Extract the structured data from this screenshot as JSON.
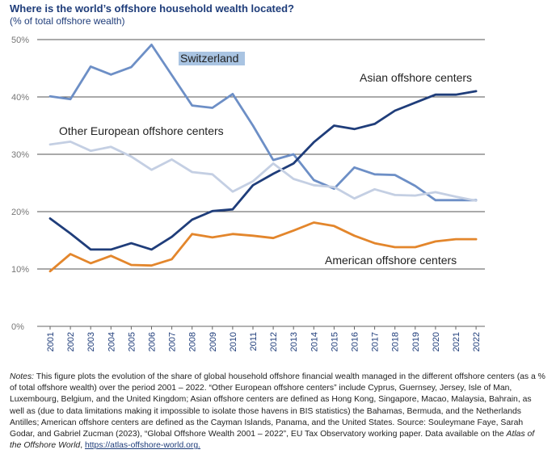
{
  "header": {
    "title": "Where is the world’s offshore household wealth located?",
    "subtitle": "(% of total offshore wealth)"
  },
  "chart_data": {
    "type": "line",
    "x": [
      "2001",
      "2002",
      "2003",
      "2004",
      "2005",
      "2006",
      "2007",
      "2008",
      "2009",
      "2010",
      "2011",
      "2012",
      "2013",
      "2014",
      "2015",
      "2016",
      "2017",
      "2018",
      "2019",
      "2020",
      "2021",
      "2022"
    ],
    "ylim": [
      0,
      50
    ],
    "yticks": [
      "0%",
      "10%",
      "20%",
      "30%",
      "40%",
      "50%"
    ],
    "ytick_values": [
      0,
      10,
      20,
      30,
      40,
      50
    ],
    "grid": true,
    "series": [
      {
        "name": "Switzerland",
        "color": "#6d8fc6",
        "values": [
          40.1,
          39.6,
          45.3,
          43.9,
          45.2,
          49.1,
          43.8,
          38.5,
          38.1,
          40.5,
          35.0,
          29.0,
          30.0,
          25.5,
          24.0,
          27.7,
          26.5,
          26.4,
          24.5,
          22.0,
          22.0,
          22.0
        ]
      },
      {
        "name": "Asian offshore centers",
        "color": "#1f3d7a",
        "values": [
          18.8,
          16.2,
          13.4,
          13.4,
          14.5,
          13.4,
          15.6,
          18.6,
          20.1,
          20.4,
          24.6,
          26.6,
          28.4,
          32.1,
          35.0,
          34.4,
          35.3,
          37.6,
          39.0,
          40.4,
          40.4,
          41.0
        ]
      },
      {
        "name": "Other European offshore centers",
        "color": "#c4cfe3",
        "values": [
          31.7,
          32.2,
          30.6,
          31.3,
          29.6,
          27.3,
          29.1,
          26.9,
          26.5,
          23.5,
          25.3,
          28.4,
          25.7,
          24.6,
          24.3,
          22.3,
          23.9,
          22.9,
          22.8,
          23.4,
          22.6,
          21.9
        ]
      },
      {
        "name": "American offshore centers",
        "color": "#e3862c",
        "values": [
          9.6,
          12.6,
          11.0,
          12.3,
          10.7,
          10.6,
          11.7,
          16.1,
          15.5,
          16.1,
          15.8,
          15.4,
          16.7,
          18.1,
          17.5,
          15.8,
          14.5,
          13.8,
          13.8,
          14.8,
          15.2,
          15.2
        ]
      }
    ]
  },
  "notes": {
    "label": "Notes:",
    "text1": " This figure plots the evolution of the share of global household offshore financial wealth managed in the different offshore centers (as a % of total offshore wealth) over the period 2001 – 2022. “Other European offshore centers” include Cyprus, Guernsey, Jersey, Isle of Man, Luxembourg, Belgium, and the United Kingdom; Asian offshore centers are defined as Hong Kong, Singapore, Macao, Malaysia, Bahrain, as well as (due to data limitations making it impossible to isolate those havens in BIS statistics) the Bahamas, Bermuda, and the Netherlands Antilles; American offshore centers are defined as the Cayman Islands, Panama, and the United States. Source: Souleymane Faye, Sarah Godar, and Gabriel Zucman (2023), “Global Offshore Wealth 2001 – 2022”, EU Tax Observatory working paper. Data available on the ",
    "atlas": "Atlas of the Offshore World",
    "sep": ", ",
    "link": "https://atlas-offshore-world.org."
  }
}
